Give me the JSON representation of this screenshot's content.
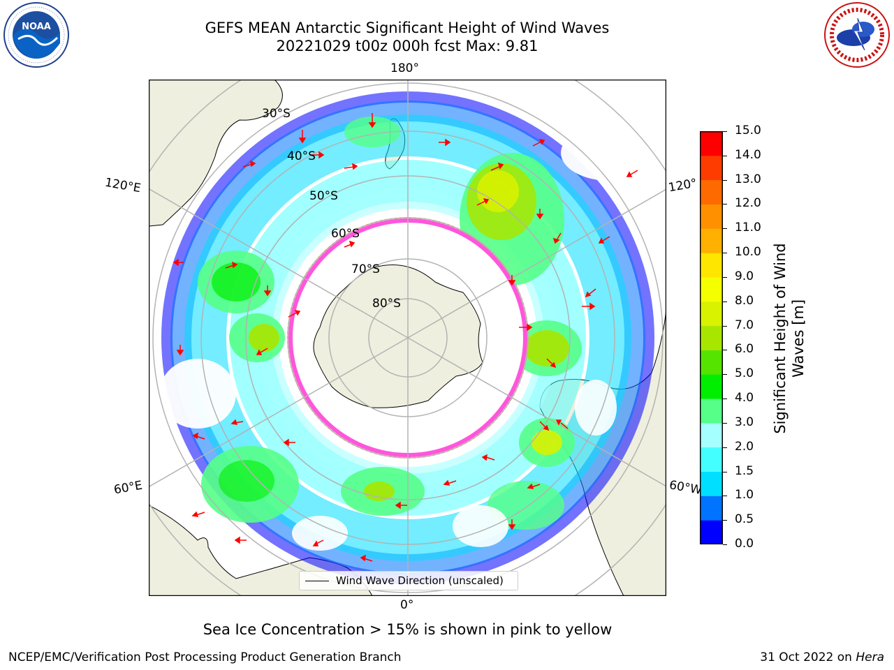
{
  "title": {
    "line1": "GEFS MEAN Antarctic Significant Height of Wind Waves",
    "line2": "20221029 t00z 000h fcst   Max: 9.81"
  },
  "logos": {
    "left": {
      "text": "NOAA",
      "ring_text": "NATIONAL OCEANIC AND ATMOSPHERIC ADMINISTRATION · U.S. DEPARTMENT OF COMMERCE"
    },
    "right": {
      "ring_text": "NATIONAL WEATHER SERVICE"
    }
  },
  "map": {
    "projection": "south-polar stereographic",
    "longitude_labels": [
      "180°",
      "120°E",
      "120°",
      "60°E",
      "60°W",
      "0°"
    ],
    "latitude_labels": [
      "30°S",
      "40°S",
      "50°S",
      "60°S",
      "70°S",
      "80°S"
    ],
    "colors": {
      "land": "#efefdf",
      "coastline": "#000000",
      "grid": "#b3b3b3",
      "arrow": "#ff0000",
      "ice_edge": "#ff55dd",
      "ice_inner": "#ffaa33"
    }
  },
  "legend": {
    "label": "Wind Wave Direction (unscaled)"
  },
  "colorbar": {
    "label_line1": "Significant Height of Wind",
    "label_line2": "Waves [m]",
    "ticks": [
      "0.0",
      "0.5",
      "1.0",
      "1.5",
      "2.0",
      "3.0",
      "4.0",
      "5.0",
      "6.0",
      "7.0",
      "8.0",
      "9.0",
      "10.0",
      "11.0",
      "12.0",
      "13.0",
      "14.0",
      "15.0"
    ],
    "colors": [
      "#0000ff",
      "#0073ff",
      "#00dfff",
      "#44ffff",
      "#a6ffff",
      "#55ff88",
      "#00ee00",
      "#55e400",
      "#a8e600",
      "#d8f200",
      "#f4ff00",
      "#ffe600",
      "#ffb000",
      "#ff9000",
      "#ff6a00",
      "#ff3c00",
      "#ff0000"
    ]
  },
  "footer": {
    "note": "Sea Ice Concentration > 15% is shown in pink to yellow",
    "left": "NCEP/EMC/Verification Post Processing Product Generation Branch",
    "right_prefix": "31 Oct 2022 on ",
    "right_italic": "Hera"
  }
}
